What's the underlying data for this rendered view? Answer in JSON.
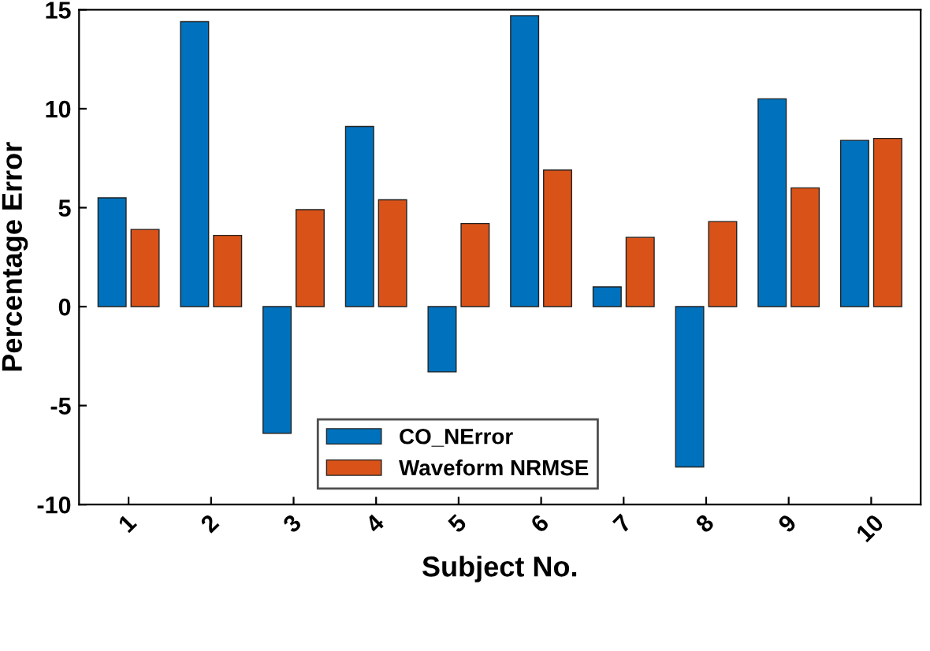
{
  "chart_data": {
    "type": "bar",
    "xlabel": "Subject No.",
    "ylabel": "Percentage Error",
    "categories": [
      "1",
      "2",
      "3",
      "4",
      "5",
      "6",
      "7",
      "8",
      "9",
      "10"
    ],
    "series": [
      {
        "name": "CO_NError",
        "color": "#0072bd",
        "values": [
          5.5,
          14.4,
          -6.4,
          9.1,
          -3.3,
          14.7,
          1.0,
          -8.1,
          10.5,
          8.4
        ]
      },
      {
        "name": "Waveform NRMSE",
        "color": "#d95319",
        "values": [
          3.9,
          3.6,
          4.9,
          5.4,
          4.2,
          6.9,
          3.5,
          4.3,
          6.0,
          8.5
        ]
      }
    ],
    "ylim": [
      -10,
      15
    ],
    "yticks": [
      -10,
      -5,
      0,
      5,
      10,
      15
    ],
    "grid": false,
    "legend": "bottom"
  }
}
